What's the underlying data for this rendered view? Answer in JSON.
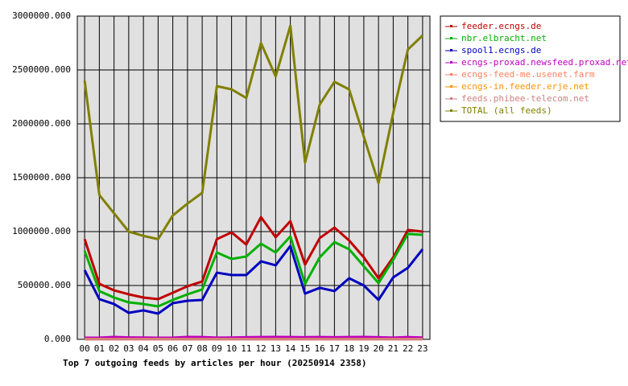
{
  "chart_data": {
    "type": "line",
    "title": "Top 7 outgoing feeds by articles per hour (20250914 2358)",
    "categories": [
      "00",
      "01",
      "02",
      "03",
      "04",
      "05",
      "06",
      "07",
      "08",
      "09",
      "10",
      "11",
      "12",
      "13",
      "14",
      "15",
      "16",
      "17",
      "18",
      "19",
      "20",
      "21",
      "22",
      "23"
    ],
    "ylim": [
      0,
      3000000
    ],
    "yticks": [
      {
        "value": 0,
        "label": "0.000"
      },
      {
        "value": 500000,
        "label": "500000.000"
      },
      {
        "value": 1000000,
        "label": "1000000.000"
      },
      {
        "value": 1500000,
        "label": "1500000.000"
      },
      {
        "value": 2000000,
        "label": "2000000.000"
      },
      {
        "value": 2500000,
        "label": "2500000.000"
      },
      {
        "value": 3000000,
        "label": "3000000.000"
      }
    ],
    "grid": true,
    "legend": "right",
    "series": [
      {
        "name": "feeder.ecngs.de",
        "color": "#c00000",
        "values": [
          930000,
          515000,
          455000,
          418000,
          388000,
          373000,
          433000,
          493000,
          537000,
          930000,
          993000,
          880000,
          1134000,
          948000,
          1097000,
          694000,
          940000,
          1037000,
          918000,
          761000,
          567000,
          761000,
          1015000,
          1000000
        ]
      },
      {
        "name": "nbr.elbracht.net",
        "color": "#00b000",
        "values": [
          820000,
          448000,
          388000,
          343000,
          328000,
          306000,
          366000,
          418000,
          463000,
          806000,
          746000,
          769000,
          888000,
          806000,
          955000,
          515000,
          761000,
          903000,
          836000,
          679000,
          522000,
          739000,
          978000,
          970000
        ]
      },
      {
        "name": "spool1.ecngs.de",
        "color": "#0000c0",
        "values": [
          642000,
          373000,
          328000,
          246000,
          269000,
          239000,
          336000,
          358000,
          366000,
          619000,
          597000,
          597000,
          724000,
          687000,
          866000,
          425000,
          478000,
          448000,
          567000,
          500000,
          366000,
          575000,
          664000,
          836000
        ]
      },
      {
        "name": "ecngs-proxad.newsfeed.proxad.net",
        "color": "#c000c0",
        "values": [
          15000,
          16000,
          22000,
          18000,
          17000,
          15000,
          16000,
          22000,
          21000,
          16000,
          17000,
          20000,
          21000,
          22000,
          21000,
          20000,
          21000,
          20000,
          21000,
          22000,
          20000,
          16000,
          21000,
          17000
        ]
      },
      {
        "name": "ecngs-feed-me.usenet.farm",
        "color": "#ff8060",
        "values": [
          3000,
          3000,
          3000,
          3000,
          3000,
          3000,
          3000,
          3000,
          3000,
          3000,
          3000,
          3000,
          3000,
          3000,
          3000,
          3000,
          3000,
          3000,
          3000,
          3000,
          3000,
          3000,
          3000,
          3000
        ]
      },
      {
        "name": "ecngs-in.feeder.erje.net",
        "color": "#ff9000",
        "values": [
          2000,
          2000,
          2000,
          2000,
          2000,
          2000,
          2000,
          2000,
          2000,
          2000,
          2000,
          2000,
          2000,
          2000,
          2000,
          2000,
          2000,
          2000,
          2000,
          2000,
          2000,
          2000,
          2000,
          2000
        ]
      },
      {
        "name": "feeds.phibee-telecom.net",
        "color": "#d08080",
        "values": [
          1000,
          1000,
          1000,
          1000,
          1000,
          1000,
          1000,
          1000,
          1000,
          1000,
          1000,
          1000,
          1000,
          1000,
          1000,
          1000,
          1000,
          1000,
          1000,
          1000,
          1000,
          1000,
          1000,
          1000
        ]
      },
      {
        "name": "TOTAL (all feeds)",
        "color": "#808000",
        "values": [
          2400000,
          1340000,
          1170000,
          1000000,
          960000,
          930000,
          1150000,
          1260000,
          1360000,
          2350000,
          2320000,
          2240000,
          2750000,
          2440000,
          2910000,
          1640000,
          2180000,
          2390000,
          2320000,
          1880000,
          1450000,
          2100000,
          2690000,
          2820000
        ]
      }
    ]
  }
}
